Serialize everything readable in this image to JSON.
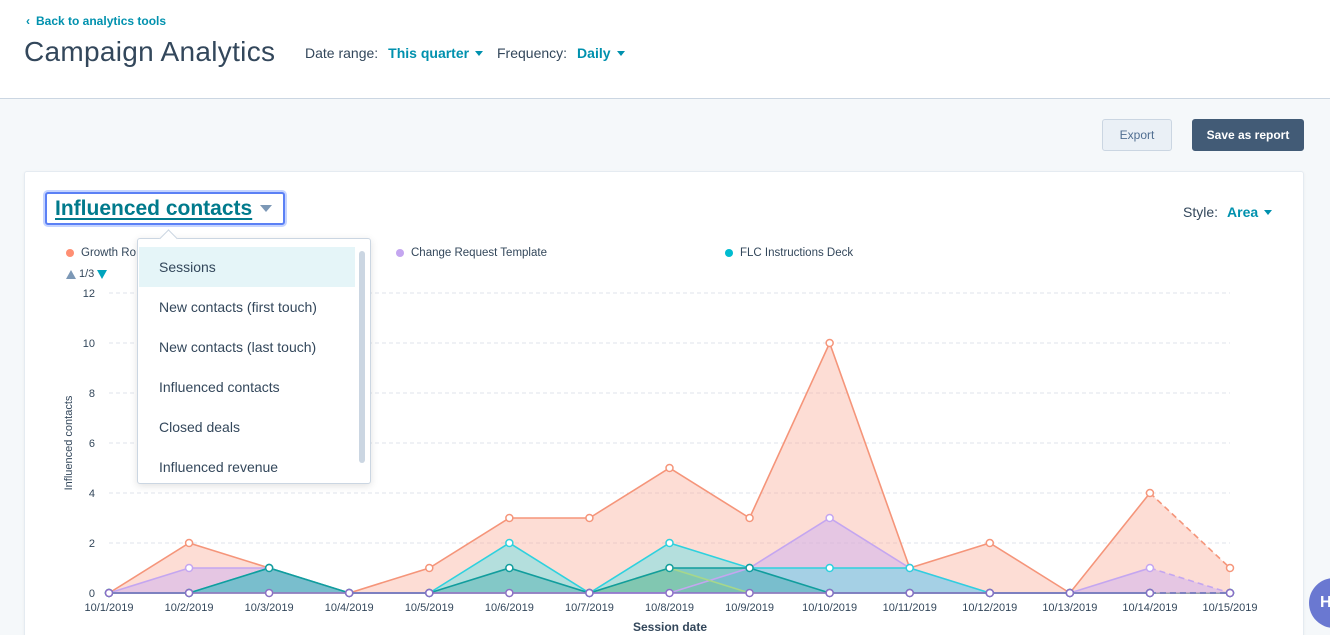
{
  "header": {
    "back_label": "Back to analytics tools",
    "back_icon": "chevron-left-icon",
    "title": "Campaign Analytics",
    "date_range_label": "Date range:",
    "date_range_value": "This quarter",
    "frequency_label": "Frequency:",
    "frequency_value": "Daily"
  },
  "actions": {
    "export_label": "Export",
    "save_label": "Save as report"
  },
  "card": {
    "metric_value": "Influenced contacts",
    "style_label": "Style:",
    "style_value": "Area",
    "pager_text": "1/3"
  },
  "legend": [
    {
      "label": "Growth Ro",
      "color": "#ff8f73"
    },
    {
      "label": "Change Request Template",
      "color": "#c4a6f0"
    },
    {
      "label": "FLC Instructions Deck",
      "color": "#00bda5"
    }
  ],
  "dropdown": {
    "items": [
      "Sessions",
      "New contacts (first touch)",
      "New contacts (last touch)",
      "Influenced contacts",
      "Closed deals",
      "Influenced revenue"
    ],
    "active_index": 0
  },
  "help": {
    "label": "H"
  },
  "colors": {
    "accent": "#0091ae",
    "primary_button": "#425b76",
    "growth": "#f5957a",
    "change": "#c4a6f0",
    "flc": "#2ed1de",
    "teal_dark": "#119d9d",
    "green": "#a6d78b",
    "purple_line": "#8b6ec7"
  },
  "chart_data": {
    "type": "area",
    "xlabel": "Session date",
    "ylabel": "Influenced contacts",
    "ylim": [
      0,
      12
    ],
    "yticks": [
      0,
      2,
      4,
      6,
      8,
      10,
      12
    ],
    "categories": [
      "10/1/2019",
      "10/2/2019",
      "10/3/2019",
      "10/4/2019",
      "10/5/2019",
      "10/6/2019",
      "10/7/2019",
      "10/8/2019",
      "10/9/2019",
      "10/10/2019",
      "10/11/2019",
      "10/12/2019",
      "10/13/2019",
      "10/14/2019",
      "10/15/2019"
    ],
    "grid": true,
    "dashed_last_segment": true,
    "series": [
      {
        "name": "Growth Ro",
        "color": "#f5957a",
        "values": [
          0,
          2,
          1,
          0,
          1,
          3,
          3,
          5,
          3,
          10,
          1,
          2,
          0,
          4,
          1
        ]
      },
      {
        "name": "Change Request Template",
        "color": "#c4a6f0",
        "values": [
          0,
          1,
          1,
          0,
          0,
          0,
          0,
          0,
          1,
          3,
          1,
          0,
          0,
          1,
          0
        ]
      },
      {
        "name": "FLC Instructions Deck",
        "color": "#2ed1de",
        "values": [
          0,
          0,
          1,
          0,
          0,
          2,
          0,
          2,
          1,
          1,
          1,
          0,
          0,
          0,
          0
        ]
      },
      {
        "color": "#a6d78b",
        "values": [
          0,
          0,
          0,
          0,
          0,
          0,
          0,
          1,
          0,
          0,
          0,
          0,
          0,
          0,
          0
        ]
      },
      {
        "color": "#119d9d",
        "values": [
          0,
          0,
          1,
          0,
          0,
          1,
          0,
          1,
          1,
          0,
          0,
          0,
          0,
          0,
          0
        ]
      },
      {
        "color": "#8b6ec7",
        "values": [
          0,
          0,
          0,
          0,
          0,
          0,
          0,
          0,
          0,
          0,
          0,
          0,
          0,
          0,
          0
        ]
      }
    ]
  }
}
